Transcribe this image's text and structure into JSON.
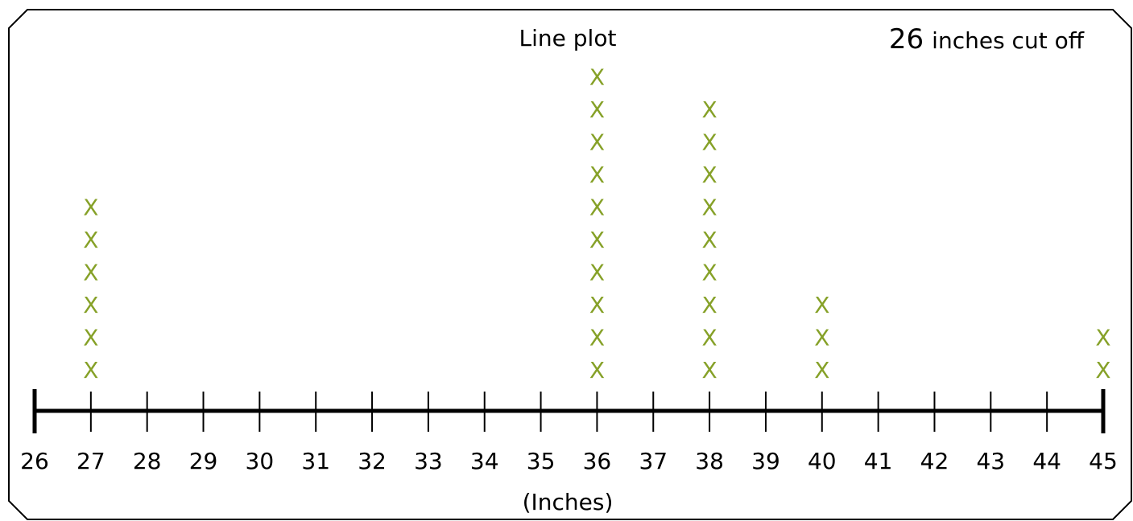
{
  "chart_data": {
    "type": "dot-plot",
    "title": "Line plot",
    "annotation": {
      "value": "26",
      "text": "inches cut off"
    },
    "xlabel": "(Inches)",
    "xlim": [
      26,
      45
    ],
    "ticks": [
      "26",
      "27",
      "28",
      "29",
      "30",
      "31",
      "32",
      "33",
      "34",
      "35",
      "36",
      "37",
      "38",
      "39",
      "40",
      "41",
      "42",
      "43",
      "44",
      "45"
    ],
    "marker": "X",
    "marker_color": "#86a128",
    "points": [
      {
        "x": 27,
        "count": 6
      },
      {
        "x": 36,
        "count": 10
      },
      {
        "x": 38,
        "count": 9
      },
      {
        "x": 40,
        "count": 3
      },
      {
        "x": 45,
        "count": 2
      }
    ]
  }
}
